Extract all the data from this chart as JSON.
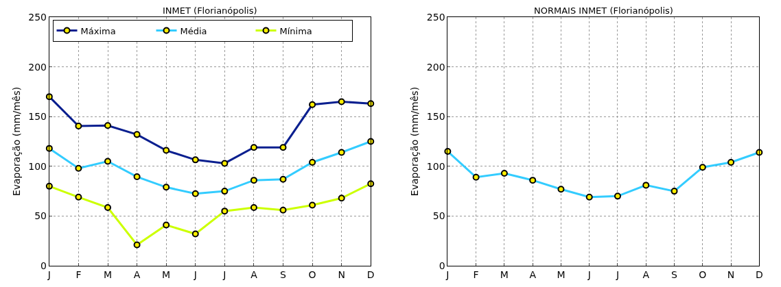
{
  "chart_data": [
    {
      "type": "line",
      "title": "INMET (Florianópolis)",
      "ylabel": "Evaporação (mm/mês)",
      "categories": [
        "J",
        "F",
        "M",
        "A",
        "M",
        "J",
        "J",
        "A",
        "S",
        "O",
        "N",
        "D"
      ],
      "series": [
        {
          "name": "Máxima",
          "color": "#0a1f8f",
          "values": [
            170,
            140.5,
            141,
            132,
            116,
            106.5,
            103,
            119,
            119,
            162,
            165,
            163
          ]
        },
        {
          "name": "Média",
          "color": "#33ccff",
          "values": [
            118,
            98,
            105,
            89.5,
            79,
            72.5,
            75,
            86,
            87,
            104,
            114,
            125
          ]
        },
        {
          "name": "Mínima",
          "color": "#ccff00",
          "values": [
            80,
            69,
            58.5,
            21,
            41,
            32,
            55,
            58.5,
            56,
            61,
            68,
            82.5
          ]
        }
      ],
      "ylim": [
        0,
        250
      ],
      "yticks": [
        0,
        50,
        100,
        150,
        200,
        250
      ],
      "grid": true,
      "legend": "top left",
      "marker": "circle",
      "line_style": "solid"
    },
    {
      "type": "line",
      "title": "NORMAIS INMET (Florianópolis)",
      "ylabel": "Evaporação (mm/mês)",
      "categories": [
        "J",
        "F",
        "M",
        "A",
        "M",
        "J",
        "J",
        "A",
        "S",
        "O",
        "N",
        "D"
      ],
      "series": [
        {
          "color": "#33ccff",
          "values": [
            115,
            89,
            93,
            86,
            77,
            69,
            70,
            81,
            75,
            99,
            104,
            114
          ]
        }
      ],
      "ylim": [
        0,
        250
      ],
      "yticks": [
        0,
        50,
        100,
        150,
        200,
        250
      ],
      "grid": true,
      "marker": "circle",
      "line_style": "solid"
    }
  ]
}
